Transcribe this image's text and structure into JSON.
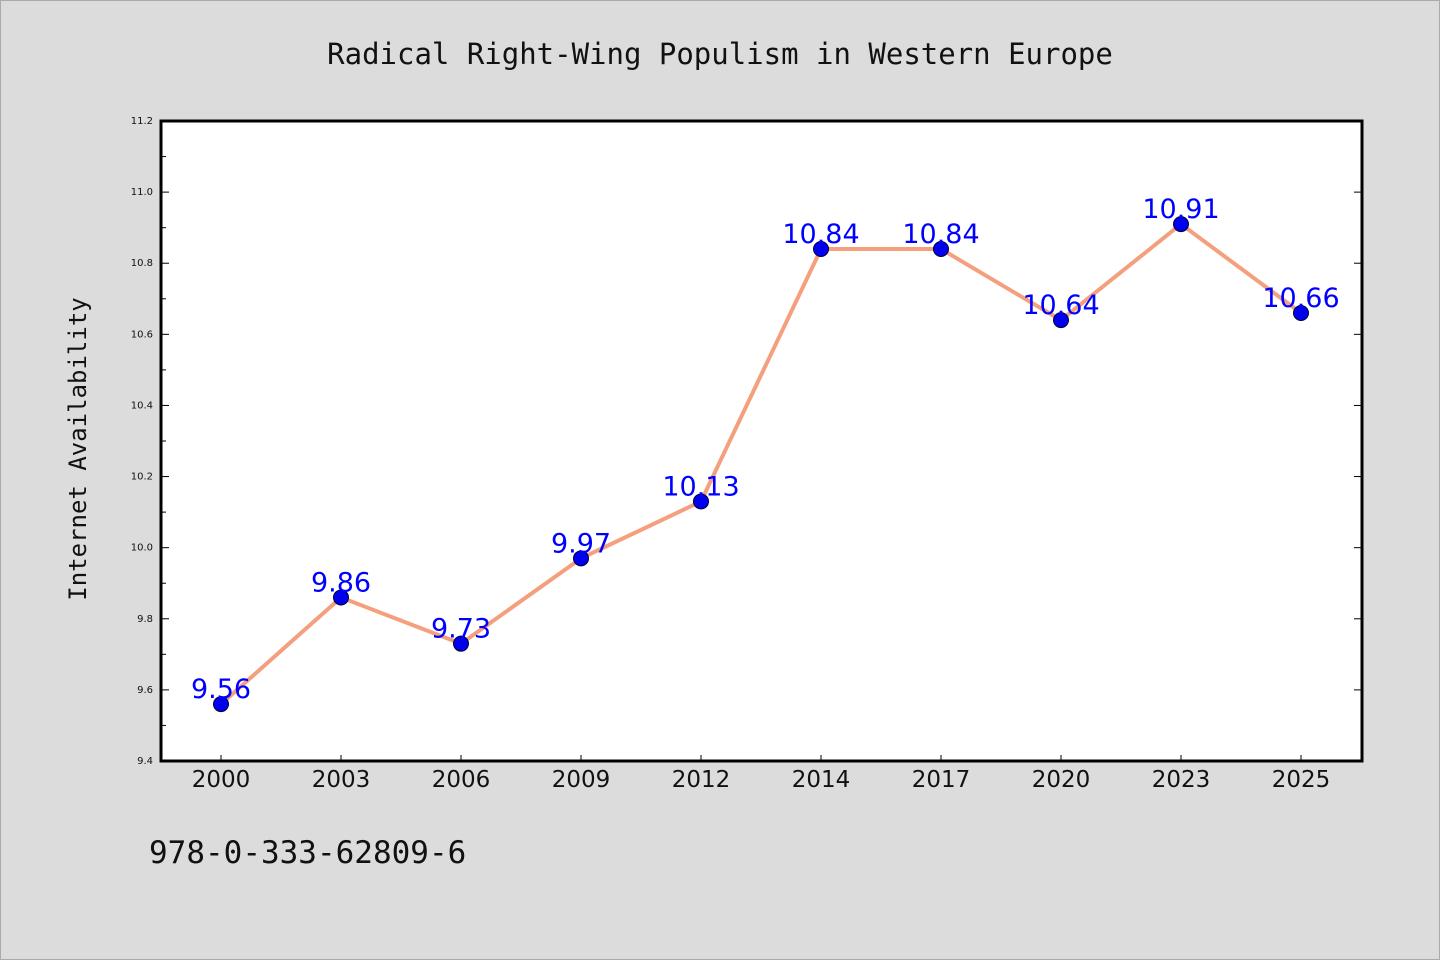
{
  "chart_data": {
    "type": "line",
    "title": "Radical Right-Wing Populism in Western Europe",
    "xlabel": "",
    "ylabel": "Internet Availability",
    "categories": [
      "2000",
      "2003",
      "2006",
      "2009",
      "2012",
      "2014",
      "2017",
      "2020",
      "2023",
      "2025"
    ],
    "values": [
      9.56,
      9.86,
      9.73,
      9.97,
      10.13,
      10.84,
      10.84,
      10.64,
      10.91,
      10.66
    ],
    "data_labels": [
      "9.56",
      "9.86",
      "9.73",
      "9.97",
      "10.13",
      "10.84",
      "10.84",
      "10.64",
      "10.91",
      "10.66"
    ],
    "ylim": [
      9.4,
      11.2
    ],
    "yticks": [
      9.4,
      9.6,
      9.8,
      10.0,
      10.2,
      10.4,
      10.6,
      10.8,
      11.0,
      11.2
    ],
    "ytick_labels": [
      "9.4",
      "9.6",
      "9.8",
      "10.0",
      "10.2",
      "10.4",
      "10.6",
      "10.8",
      "11.0",
      "11.2"
    ],
    "grid": false,
    "legend": "none",
    "colors": {
      "line": "#f4a07e",
      "marker": "#0000ee",
      "label": "#0000ff",
      "background": "#dcdcdc",
      "plot_background": "#ffffff"
    }
  },
  "footer": {
    "isbn": "978-0-333-62809-6"
  }
}
